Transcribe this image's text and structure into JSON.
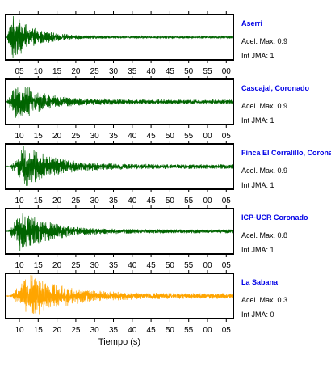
{
  "chart_data": {
    "type": "line",
    "xlabel": "Tiempo (s)",
    "station_color": "#0000e6",
    "panels": [
      {
        "station": "Aserri",
        "accel_text": "Acel. Max. 0.9",
        "jma_text": "Int JMA: 1",
        "accel_max": 0.9,
        "int_jma": 1,
        "color": "#006400",
        "x_range": [
          0,
          62
        ],
        "tick_labels": [
          "05",
          "10",
          "15",
          "20",
          "25",
          "30",
          "35",
          "40",
          "45",
          "50",
          "55",
          "00"
        ],
        "envelope": {
          "onset_s": 0.3,
          "peak_s": 2.0,
          "decay_s": 6.0,
          "peak_amp": 0.98,
          "coda_amp": 0.05
        }
      },
      {
        "station": "Cascajal, Coronado",
        "accel_text": "Acel. Max. 0.9",
        "jma_text": "Int JMA: 1",
        "accel_max": 0.9,
        "int_jma": 1,
        "color": "#006400",
        "x_range": [
          0,
          62
        ],
        "tick_labels": [
          "10",
          "15",
          "20",
          "25",
          "30",
          "35",
          "40",
          "45",
          "50",
          "55",
          "00",
          "05"
        ],
        "envelope": {
          "onset_s": 0.3,
          "peak_s": 3.0,
          "decay_s": 7.0,
          "peak_amp": 0.95,
          "coda_amp": 0.1
        }
      },
      {
        "station": "Finca El Corralillo, Coronado",
        "accel_text": "Acel. Max. 0.9",
        "jma_text": "Int JMA: 1",
        "accel_max": 0.9,
        "int_jma": 1,
        "color": "#006400",
        "x_range": [
          0,
          62
        ],
        "tick_labels": [
          "10",
          "15",
          "20",
          "25",
          "30",
          "35",
          "40",
          "45",
          "50",
          "55",
          "00",
          "05"
        ],
        "envelope": {
          "onset_s": 1.0,
          "peak_s": 5.0,
          "decay_s": 8.0,
          "peak_amp": 0.95,
          "coda_amp": 0.1
        }
      },
      {
        "station": "ICP-UCR Coronado",
        "accel_text": "Acel. Max. 0.8",
        "jma_text": "Int JMA: 1",
        "accel_max": 0.8,
        "int_jma": 1,
        "color": "#006400",
        "x_range": [
          0,
          62
        ],
        "tick_labels": [
          "10",
          "15",
          "20",
          "25",
          "30",
          "35",
          "40",
          "45",
          "50",
          "55",
          "00",
          "05"
        ],
        "envelope": {
          "onset_s": 0.8,
          "peak_s": 4.0,
          "decay_s": 8.0,
          "peak_amp": 0.95,
          "coda_amp": 0.08
        }
      },
      {
        "station": "La Sabana",
        "accel_text": "Acel. Max. 0.3",
        "jma_text": "Int JMA: 0",
        "accel_max": 0.3,
        "int_jma": 0,
        "color": "#ffa500",
        "x_range": [
          0,
          62
        ],
        "tick_labels": [
          "10",
          "15",
          "20",
          "25",
          "30",
          "35",
          "40",
          "45",
          "50",
          "55",
          "00",
          "05"
        ],
        "envelope": {
          "onset_s": 1.0,
          "peak_s": 7.0,
          "decay_s": 9.0,
          "peak_amp": 0.98,
          "coda_amp": 0.12
        }
      }
    ]
  }
}
